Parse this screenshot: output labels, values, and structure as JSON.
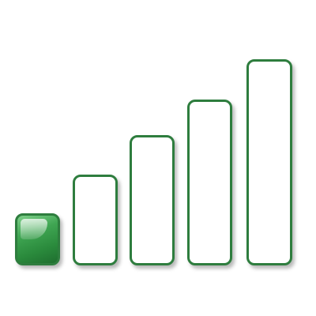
{
  "signal_meter": {
    "bar_count": 5,
    "active_bars": 1,
    "colors": {
      "outline": "#2e7d3e",
      "fill_active": "#3fa552",
      "fill_inactive": "#ffffff"
    }
  }
}
